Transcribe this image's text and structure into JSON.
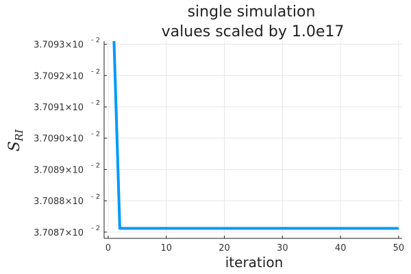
{
  "chart_data": {
    "type": "line",
    "title": "single simulation",
    "subtitle": "values scaled by 1.0e17",
    "xlabel": "iteration",
    "ylabel_main": "S",
    "ylabel_sub": "RI",
    "xlim": [
      0,
      50
    ],
    "ylim": [
      0.0370868,
      0.0370931
    ],
    "grid": true,
    "legend": "none",
    "xticks": [
      0,
      10,
      20,
      30,
      40,
      50
    ],
    "xtick_labels": [
      "0",
      "10",
      "20",
      "30",
      "40",
      "50"
    ],
    "yticks": [
      0.037087,
      0.037088,
      0.037089,
      0.03709,
      0.037091,
      0.037092,
      0.037093
    ],
    "ytick_mantissas": [
      "3.7087×10",
      "3.7088×10",
      "3.7089×10",
      "3.7090×10",
      "3.7091×10",
      "3.7092×10",
      "3.7093×10"
    ],
    "ytick_exponent": "- 2",
    "series": [
      {
        "color": "#009AFA",
        "x": [
          1,
          2,
          3,
          4,
          5,
          6,
          7,
          8,
          9,
          10,
          11,
          12,
          13,
          14,
          15,
          16,
          17,
          18,
          19,
          20,
          21,
          22,
          23,
          24,
          25,
          26,
          27,
          28,
          29,
          30,
          31,
          32,
          33,
          34,
          35,
          36,
          37,
          38,
          39,
          40,
          41,
          42,
          43,
          44,
          45,
          46,
          47,
          48,
          49,
          50
        ],
        "values": [
          0.0370931,
          0.03708712,
          0.03708712,
          0.03708712,
          0.03708712,
          0.03708712,
          0.03708712,
          0.03708712,
          0.03708712,
          0.03708712,
          0.03708712,
          0.03708712,
          0.03708712,
          0.03708712,
          0.03708712,
          0.03708712,
          0.03708712,
          0.03708712,
          0.03708712,
          0.03708712,
          0.03708712,
          0.03708712,
          0.03708712,
          0.03708712,
          0.03708712,
          0.03708712,
          0.03708712,
          0.03708712,
          0.03708712,
          0.03708712,
          0.03708712,
          0.03708712,
          0.03708712,
          0.03708712,
          0.03708712,
          0.03708712,
          0.03708712,
          0.03708712,
          0.03708712,
          0.03708712,
          0.03708712,
          0.03708712,
          0.03708712,
          0.03708712,
          0.03708712,
          0.03708712,
          0.03708712,
          0.03708712,
          0.03708712,
          0.03708712
        ]
      }
    ]
  }
}
